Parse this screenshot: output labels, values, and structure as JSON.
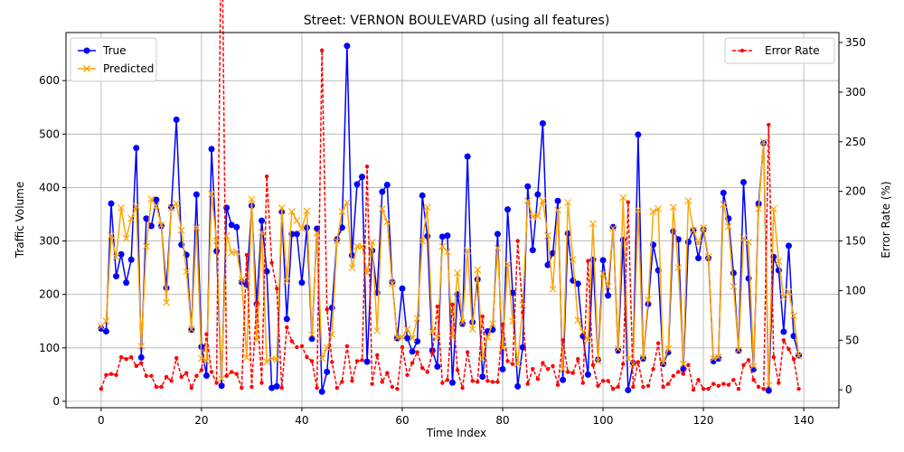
{
  "chart_data": {
    "type": "line",
    "title": "Street: VERNON BOULEVARD (using all features)",
    "xlabel": "Time Index",
    "ylabel": "Traffic Volume",
    "y2label": "Error Rate (%)",
    "xlim": [
      -7,
      147
    ],
    "ylim": [
      -12,
      690
    ],
    "y2lim": [
      -18,
      360
    ],
    "xticks": [
      0,
      20,
      40,
      60,
      80,
      100,
      120,
      140
    ],
    "yticks": [
      0,
      100,
      200,
      300,
      400,
      500,
      600
    ],
    "y2ticks": [
      0,
      50,
      100,
      150,
      200,
      250,
      300,
      350
    ],
    "grid": true,
    "legend_left_placement": "upper-left",
    "legend_right_placement": "upper-right",
    "colors": {
      "true": "#0000ff",
      "predicted": "#ffa500",
      "error": "#ff0000"
    },
    "series": [
      {
        "name": "True",
        "axis": "left",
        "values": [
          136,
          131,
          370,
          234,
          275,
          222,
          265,
          474,
          82,
          342,
          328,
          377,
          328,
          212,
          363,
          527,
          293,
          274,
          134,
          387,
          102,
          48,
          472,
          281,
          29,
          362,
          330,
          326,
          223,
          218,
          366,
          182,
          338,
          243,
          25,
          28,
          355,
          154,
          313,
          313,
          222,
          325,
          117,
          323,
          18,
          55,
          175,
          303,
          325,
          665,
          273,
          406,
          420,
          74,
          282,
          203,
          392,
          405,
          223,
          118,
          211,
          118,
          93,
          112,
          385,
          309,
          95,
          65,
          308,
          310,
          35,
          200,
          145,
          458,
          148,
          228,
          46,
          131,
          134,
          313,
          60,
          359,
          203,
          28,
          101,
          402,
          283,
          387,
          520,
          255,
          277,
          375,
          40,
          314,
          226,
          220,
          122,
          50,
          265,
          78,
          264,
          198,
          326,
          95,
          302,
          21,
          72,
          499,
          80,
          182,
          293,
          245,
          70,
          92,
          318,
          303,
          60,
          298,
          320,
          268,
          321,
          268,
          75,
          80,
          390,
          342,
          240,
          95,
          410,
          230,
          60,
          370,
          483,
          20,
          270,
          245,
          130,
          291,
          122,
          86
        ],
        "markers": "circle",
        "style": "solid"
      },
      {
        "name": "Predicted",
        "axis": "left",
        "values": [
          140,
          150,
          310,
          270,
          362,
          305,
          342,
          365,
          103,
          290,
          378,
          365,
          330,
          185,
          362,
          370,
          320,
          243,
          135,
          325,
          80,
          75,
          388,
          300,
          42,
          310,
          278,
          280,
          228,
          82,
          378,
          115,
          316,
          74,
          80,
          78,
          362,
          225,
          355,
          338,
          323,
          356,
          125,
          315,
          80,
          100,
          125,
          300,
          355,
          372,
          250,
          290,
          290,
          240,
          298,
          132,
          360,
          336,
          220,
          119,
          120,
          135,
          118,
          155,
          300,
          363,
          130,
          120,
          290,
          280,
          120,
          240,
          148,
          282,
          135,
          246,
          80,
          120,
          145,
          287,
          100,
          257,
          150,
          70,
          180,
          375,
          345,
          347,
          375,
          310,
          210,
          358,
          60,
          372,
          265,
          152,
          130,
          115,
          332,
          75,
          239,
          215,
          324,
          98,
          381,
          80,
          70,
          358,
          82,
          190,
          355,
          360,
          72,
          98,
          363,
          250,
          70,
          375,
          320,
          295,
          325,
          270,
          80,
          83,
          368,
          327,
          215,
          96,
          305,
          298,
          66,
          360,
          485,
          30,
          360,
          262,
          195,
          205,
          160,
          85
        ],
        "markers": "x",
        "style": "solid"
      },
      {
        "name": "Error Rate",
        "axis": "right",
        "values": [
          1,
          15,
          16,
          15,
          33,
          31,
          33,
          24,
          27,
          14,
          14,
          3,
          3,
          13,
          9,
          32,
          13,
          17,
          2,
          14,
          20,
          56,
          18,
          7,
          508,
          14,
          18,
          16,
          2,
          136,
          3,
          88,
          7,
          215,
          128,
          102,
          2,
          63,
          49,
          43,
          44,
          33,
          29,
          2,
          342,
          81,
          28,
          2,
          8,
          44,
          9,
          29,
          30,
          225,
          6,
          35,
          8,
          17,
          3,
          1,
          43,
          15,
          27,
          38,
          22,
          18,
          37,
          84,
          7,
          10,
          86,
          20,
          2,
          38,
          9,
          8,
          74,
          9,
          8,
          8,
          66,
          29,
          26,
          150,
          78,
          6,
          21,
          11,
          27,
          21,
          24,
          5,
          50,
          18,
          17,
          31,
          7,
          130,
          25,
          4,
          9,
          9,
          1,
          3,
          26,
          189,
          3,
          28,
          3,
          4,
          21,
          47,
          3,
          6,
          14,
          18,
          16,
          25,
          0,
          10,
          1,
          1,
          6,
          4,
          6,
          5,
          10,
          1,
          25,
          30,
          10,
          3,
          1,
          267,
          33,
          7,
          50,
          41,
          31,
          1
        ],
        "markers": "dot",
        "style": "dashed"
      }
    ]
  }
}
